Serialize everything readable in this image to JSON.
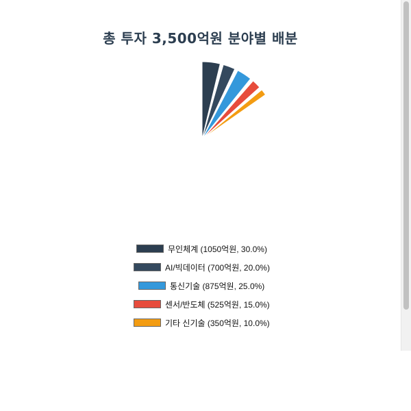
{
  "chart_data": {
    "type": "pie",
    "title": "총 투자 3,500억원 분야별 배분",
    "series": [
      {
        "name": "무인체계",
        "value": 1050,
        "percent": 30.0,
        "color": "#2c3e50",
        "legend": "무인체계 (1050억원, 30.0%)"
      },
      {
        "name": "AI/빅데이터",
        "value": 700,
        "percent": 20.0,
        "color": "#34495e",
        "legend": "AI/빅데이터 (700억원, 20.0%)"
      },
      {
        "name": "통신기술",
        "value": 875,
        "percent": 25.0,
        "color": "#3498db",
        "legend": "통신기술 (875억원, 25.0%)"
      },
      {
        "name": "센서/반도체",
        "value": 525,
        "percent": 15.0,
        "color": "#e74c3c",
        "legend": "센서/반도체 (525억원, 15.0%)"
      },
      {
        "name": "기타 신기술",
        "value": 350,
        "percent": 10.0,
        "color": "#f39c12",
        "legend": "기타 신기술 (350억원, 10.0%)"
      }
    ],
    "legend_position": "bottom"
  }
}
